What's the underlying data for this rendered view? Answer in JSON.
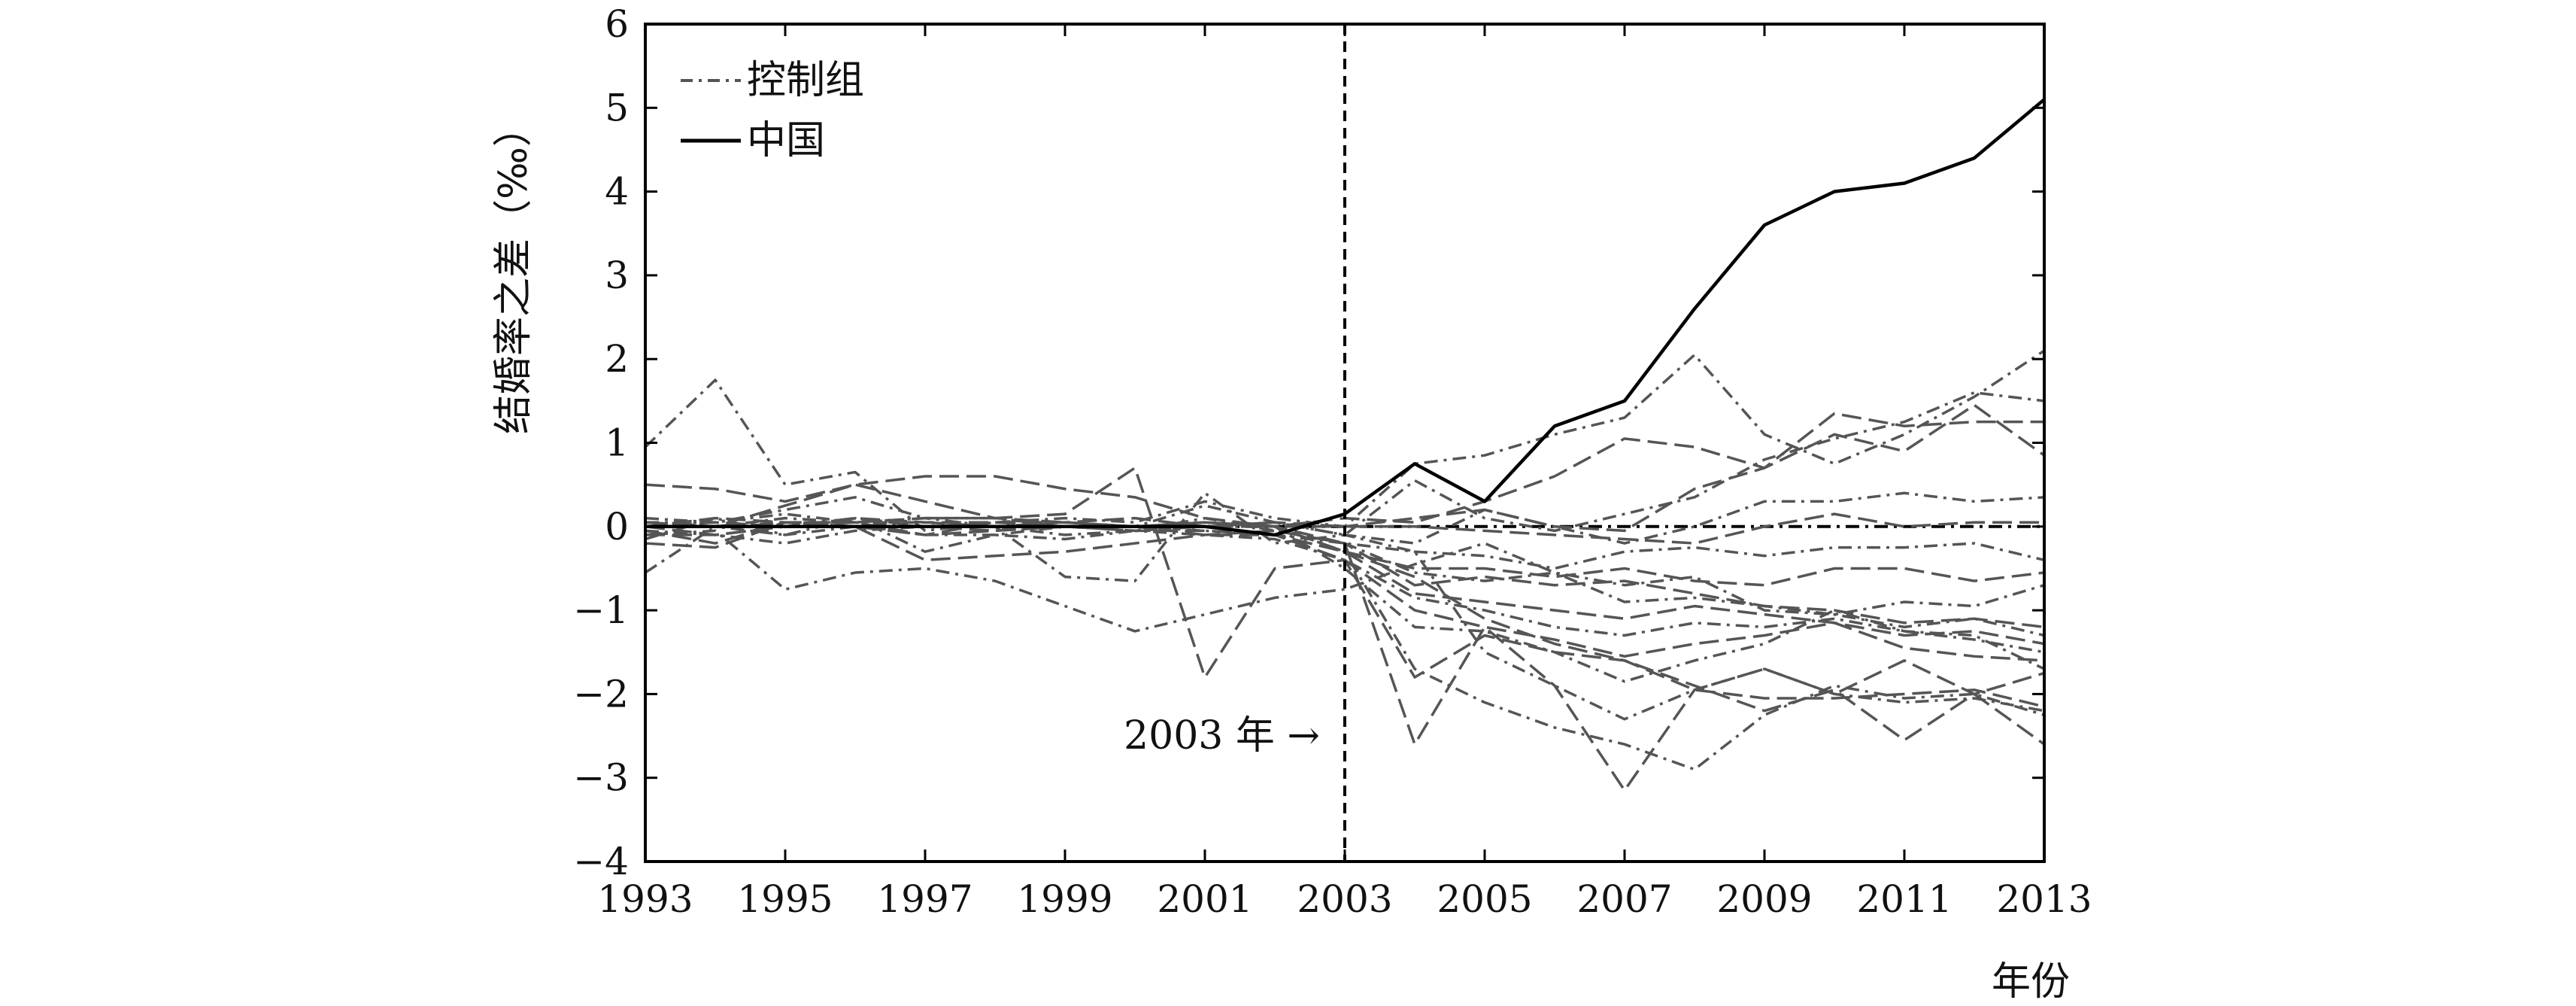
{
  "chart_data": {
    "type": "line",
    "xlabel": "年份",
    "ylabel": "结婚率之差（‰）",
    "xlim": [
      1993,
      2013
    ],
    "ylim": [
      -4,
      6
    ],
    "x_ticks": [
      "1993",
      "1995",
      "1997",
      "1999",
      "2001",
      "2003",
      "2005",
      "2007",
      "2009",
      "2011",
      "2013"
    ],
    "y_ticks": [
      "−4",
      "−3",
      "−2",
      "−1",
      "0",
      "1",
      "2",
      "3",
      "4",
      "5",
      "6"
    ],
    "x_tick_values": [
      1993,
      1995,
      1997,
      1999,
      2001,
      2003,
      2005,
      2007,
      2009,
      2011,
      2013
    ],
    "y_tick_values": [
      -4,
      -3,
      -2,
      -1,
      0,
      1,
      2,
      3,
      4,
      5,
      6
    ],
    "legend": {
      "position": "top-left",
      "entries": [
        "控制组",
        "中国"
      ]
    },
    "grid": false,
    "annotation": {
      "text": "2003 年 →",
      "x": 2003
    },
    "reference_vline": 2003,
    "x": [
      1993,
      1994,
      1995,
      1996,
      1997,
      1998,
      1999,
      2000,
      2001,
      2002,
      2003,
      2004,
      2005,
      2006,
      2007,
      2008,
      2009,
      2010,
      2011,
      2012,
      2013
    ],
    "series": [
      {
        "name": "中国",
        "style": "solid",
        "values": [
          0,
          0,
          0,
          0,
          0,
          0,
          0,
          0,
          0,
          -0.1,
          0.15,
          0.75,
          0.3,
          1.2,
          1.5,
          2.6,
          3.6,
          4.0,
          4.1,
          4.4,
          5.1
        ]
      },
      {
        "group": "控制组",
        "style": "dashdot",
        "values": [
          0.95,
          1.75,
          0.5,
          0.65,
          -0.05,
          0.05,
          0.1,
          0.05,
          0.3,
          0.1,
          0.0,
          0.75,
          0.85,
          1.1,
          1.3,
          2.05,
          1.1,
          0.75,
          1.1,
          1.55,
          2.1
        ]
      },
      {
        "group": "控制组",
        "style": "dashed",
        "values": [
          0.5,
          0.45,
          0.3,
          0.5,
          0.6,
          0.6,
          0.45,
          0.35,
          0.1,
          0.0,
          0.1,
          0.05,
          0.3,
          0.6,
          1.05,
          0.95,
          0.7,
          1.35,
          1.2,
          1.25,
          1.25
        ]
      },
      {
        "group": "控制组",
        "style": "dashdot",
        "values": [
          0.1,
          0.05,
          0.2,
          0.35,
          0.1,
          0.1,
          0.0,
          0.0,
          0.25,
          0.05,
          -0.1,
          0.55,
          0.1,
          -0.05,
          0.15,
          0.35,
          0.8,
          1.05,
          1.25,
          1.6,
          1.5
        ]
      },
      {
        "group": "控制组",
        "style": "dashed",
        "values": [
          0.0,
          0.0,
          0.25,
          0.5,
          0.3,
          0.1,
          0.05,
          0.0,
          0.05,
          0.0,
          0.0,
          0.1,
          0.2,
          0.0,
          -0.05,
          0.45,
          0.7,
          1.1,
          0.9,
          1.45,
          0.85
        ]
      },
      {
        "group": "控制组",
        "style": "dashdot",
        "values": [
          -0.55,
          0.0,
          0.1,
          0.05,
          0.1,
          0.0,
          -0.1,
          -0.05,
          0.0,
          0.05,
          -0.1,
          -0.2,
          0.2,
          0.0,
          -0.2,
          0.0,
          0.3,
          0.3,
          0.4,
          0.3,
          0.35
        ]
      },
      {
        "group": "控制组",
        "style": "dashed",
        "values": [
          0.05,
          0.0,
          0.0,
          0.05,
          -0.1,
          -0.05,
          0.0,
          0.0,
          0.0,
          0.05,
          0.0,
          0.0,
          -0.05,
          -0.1,
          -0.15,
          -0.2,
          0.0,
          0.15,
          0.0,
          0.05,
          0.05
        ]
      },
      {
        "group": "控制组",
        "style": "dashdot",
        "values": [
          -0.05,
          -0.1,
          -0.2,
          -0.05,
          0.0,
          0.0,
          0.0,
          0.0,
          -0.05,
          -0.1,
          -0.2,
          -0.3,
          -0.35,
          -0.5,
          -0.3,
          -0.25,
          -0.35,
          -0.25,
          -0.25,
          -0.2,
          -0.4
        ]
      },
      {
        "group": "控制组",
        "style": "dashed",
        "values": [
          -0.1,
          -0.1,
          0.0,
          0.0,
          -0.1,
          0.05,
          0.05,
          0.0,
          0.05,
          0.0,
          -0.3,
          -0.5,
          -0.5,
          -0.6,
          -0.5,
          -0.65,
          -0.7,
          -0.5,
          -0.5,
          -0.65,
          -0.55
        ]
      },
      {
        "group": "控制组",
        "style": "dashdot",
        "values": [
          0.05,
          0.0,
          -0.1,
          0.1,
          -0.3,
          -0.1,
          -0.15,
          -0.05,
          0.1,
          -0.05,
          -0.2,
          -0.55,
          -0.65,
          -0.55,
          -0.9,
          -0.85,
          -0.95,
          -1.05,
          -0.9,
          -0.95,
          -0.7
        ]
      },
      {
        "group": "控制组",
        "style": "dashed",
        "values": [
          -0.2,
          -0.25,
          0.05,
          0.0,
          -0.4,
          -0.35,
          -0.3,
          -0.2,
          -0.1,
          -0.05,
          -0.2,
          -0.7,
          -0.6,
          -0.7,
          -0.65,
          -0.8,
          -0.95,
          -1.0,
          -1.15,
          -1.1,
          -1.2
        ]
      },
      {
        "group": "控制组",
        "style": "dashdot",
        "values": [
          -0.1,
          -0.05,
          -0.75,
          -0.55,
          -0.5,
          -0.65,
          -0.95,
          -1.25,
          -1.05,
          -0.85,
          -0.75,
          -0.45,
          -0.2,
          -0.55,
          -0.7,
          -0.6,
          -1.0,
          -1.05,
          -1.2,
          -1.1,
          -1.3
        ]
      },
      {
        "group": "控制组",
        "style": "dashed",
        "values": [
          0.0,
          0.1,
          0.05,
          0.0,
          0.0,
          -0.05,
          0.0,
          0.0,
          -0.1,
          -0.1,
          -0.3,
          -0.8,
          -0.9,
          -1.0,
          -1.1,
          -0.95,
          -1.05,
          -1.15,
          -1.3,
          -1.25,
          -1.4
        ]
      },
      {
        "group": "控制组",
        "style": "dashdot",
        "values": [
          -0.15,
          0.1,
          -0.1,
          0.0,
          -0.1,
          -0.1,
          0.0,
          -0.05,
          -0.1,
          -0.15,
          -0.4,
          -0.85,
          -1.0,
          -1.2,
          -1.3,
          -1.15,
          -1.2,
          -1.1,
          -1.25,
          -1.35,
          -1.5
        ]
      },
      {
        "group": "控制组",
        "style": "dashed",
        "values": [
          0.0,
          0.0,
          0.0,
          0.1,
          0.0,
          0.05,
          0.05,
          0.1,
          0.0,
          -0.1,
          -0.4,
          -1.0,
          -1.2,
          -1.35,
          -1.55,
          -1.4,
          -1.3,
          -1.15,
          -1.45,
          -1.55,
          -1.6
        ]
      },
      {
        "group": "控制组",
        "style": "dashdot",
        "values": [
          0.05,
          0.05,
          0.15,
          0.05,
          0.0,
          0.0,
          0.05,
          0.0,
          0.0,
          0.0,
          -0.5,
          -1.2,
          -1.25,
          -1.5,
          -1.85,
          -1.6,
          -1.4,
          -1.0,
          -1.25,
          -1.3,
          -1.7
        ]
      },
      {
        "group": "控制组",
        "style": "dashed",
        "values": [
          0.0,
          -0.1,
          0.0,
          0.1,
          0.05,
          0.05,
          0.0,
          -0.05,
          -0.05,
          -0.1,
          -0.3,
          -0.6,
          -1.1,
          -1.4,
          -1.6,
          -1.95,
          -2.05,
          -2.05,
          -2.0,
          -1.95,
          -2.15
        ]
      },
      {
        "group": "控制组",
        "style": "dashdot",
        "values": [
          0.0,
          0.0,
          0.05,
          0.05,
          0.05,
          0.0,
          -0.6,
          -0.65,
          0.4,
          -0.2,
          -0.1,
          -0.3,
          -1.5,
          -1.9,
          -2.3,
          -1.95,
          -1.7,
          -2.0,
          -2.1,
          -2.05,
          -2.2
        ]
      },
      {
        "group": "控制组",
        "style": "dashed",
        "values": [
          -0.05,
          -0.2,
          0.05,
          0.05,
          0.1,
          0.1,
          0.15,
          0.7,
          -1.8,
          -0.5,
          -0.4,
          -1.8,
          -1.3,
          -1.5,
          -1.6,
          -1.9,
          -2.2,
          -1.95,
          -2.55,
          -2.0,
          -2.6
        ]
      },
      {
        "group": "控制组",
        "style": "dashdot",
        "values": [
          0.0,
          0.0,
          0.0,
          0.0,
          0.0,
          0.0,
          0.0,
          0.0,
          0.05,
          0.0,
          -0.3,
          -1.7,
          -2.1,
          -2.4,
          -2.6,
          -2.9,
          -2.25,
          -1.9,
          -2.05,
          -2.0,
          -2.25
        ]
      },
      {
        "group": "控制组",
        "style": "dashed",
        "values": [
          0.0,
          0.05,
          0.0,
          0.0,
          0.0,
          0.0,
          0.0,
          0.0,
          0.0,
          0.0,
          -0.2,
          -2.6,
          -1.2,
          -1.9,
          -3.15,
          -1.95,
          -1.7,
          -2.0,
          -1.6,
          -2.0,
          -1.75
        ]
      }
    ]
  }
}
